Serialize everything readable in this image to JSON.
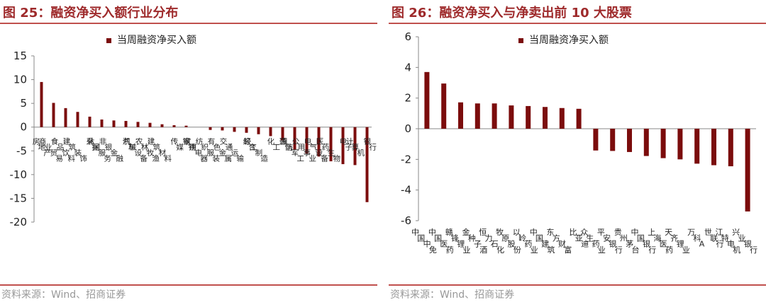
{
  "charts": [
    {
      "figure_title": "图 25：融资净买入额行业分布",
      "source": "资料来源：Wind、招商证券",
      "chart_data": {
        "type": "bar",
        "title": "图 25：融资净买入额行业分布",
        "legend": "当周融资净买入额",
        "legend_position": "top",
        "color": "#7b0c0c",
        "ylim": [
          -20,
          15
        ],
        "yticks": [
          15,
          10,
          5,
          0,
          -5,
          -10,
          -15,
          -20
        ],
        "grid": false,
        "categories": [
          "房地产",
          "商业贸易",
          "食品饮料",
          "建筑装饰",
          "采掘",
          "休闲服务",
          "非银金融",
          "汽车",
          "机械设备",
          "农林牧渔",
          "建筑材料",
          "传媒",
          "钢铁",
          "家用电器",
          "纺织服装",
          "有色金属",
          "交通运输",
          "综合",
          "轻工制造",
          "化工",
          "通信",
          "国防军工",
          "公用事业",
          "电气设备",
          "医药生物",
          "电子",
          "计算机",
          "银行"
        ],
        "values": [
          9.5,
          5.1,
          4.0,
          3.2,
          2.2,
          1.6,
          1.4,
          1.3,
          1.1,
          0.9,
          0.6,
          0.4,
          0.3,
          0,
          -0.6,
          -0.7,
          -1.0,
          -1.2,
          -1.5,
          -1.9,
          -2.8,
          -4.8,
          -5.6,
          -6.2,
          -7.2,
          -7.8,
          -8.0,
          -15.8
        ]
      }
    },
    {
      "figure_title": "图 26：融资净买入与净卖出前 10 大股票",
      "source": "资料来源：Wind、招商证券",
      "chart_data": {
        "type": "bar",
        "title": "图 26：融资净买入与净卖出前 10 大股票",
        "legend": "当周融资净买入额",
        "legend_position": "top",
        "color": "#7b0c0c",
        "ylim": [
          -6,
          6
        ],
        "yticks": [
          6,
          4,
          2,
          0,
          -2,
          -4,
          -6
        ],
        "grid": false,
        "categories": [
          "中国中免",
          "中国医药",
          "赣锋锂业",
          "金种子酒",
          "恒力石化",
          "牧原股份",
          "以岭药业",
          "中国建筑",
          "东方财富",
          "比亚迪",
          "众生药业",
          "平安银行",
          "贵州茅台",
          "中国银行",
          "上海医药",
          "天齐锂业",
          "万科A",
          "世联行",
          "江特电机",
          "兴业银行"
        ],
        "values": [
          3.7,
          2.95,
          1.72,
          1.65,
          1.65,
          1.52,
          1.48,
          1.42,
          1.35,
          1.3,
          -1.42,
          -1.45,
          -1.52,
          -1.78,
          -1.92,
          -2.0,
          -2.28,
          -2.38,
          -2.45,
          -5.4
        ]
      }
    }
  ]
}
